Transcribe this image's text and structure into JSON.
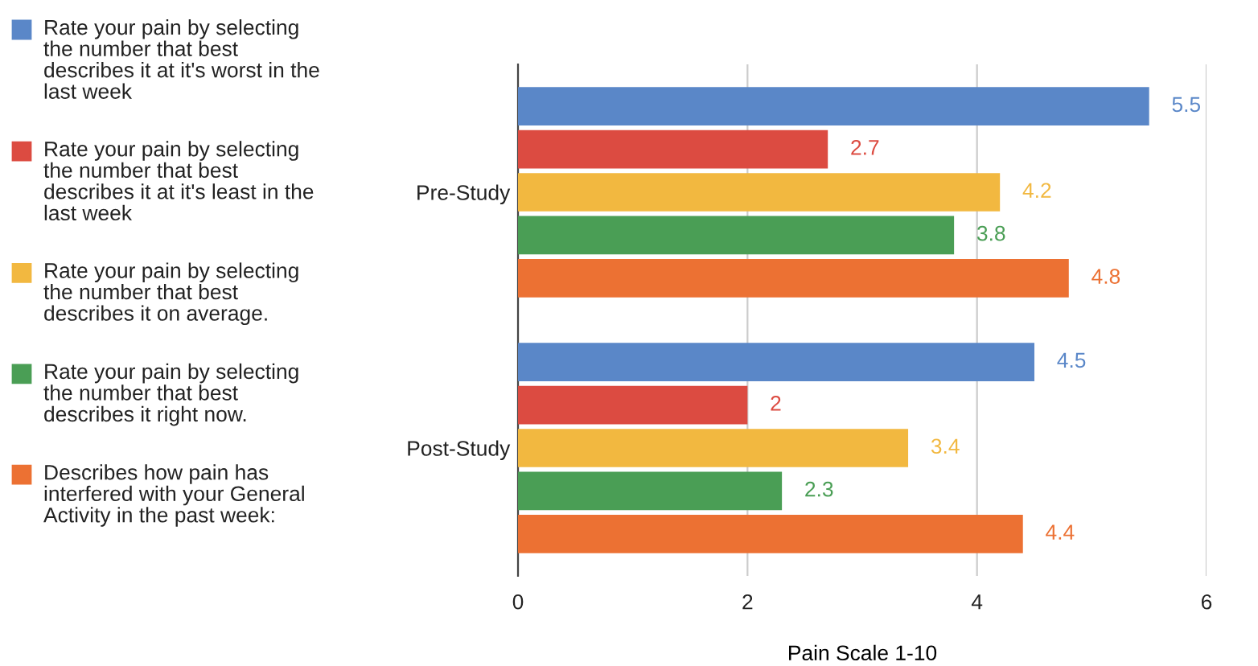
{
  "chart_data": {
    "type": "bar",
    "orientation": "horizontal",
    "categories": [
      "Pre-Study",
      "Post-Study"
    ],
    "series": [
      {
        "name": "Rate your pain by selecting the number that best describes it at it's worst in the last week",
        "color": "#5a87c8",
        "values": [
          5.5,
          4.5
        ]
      },
      {
        "name": "Rate your pain by selecting the number that best describes it at it's least in the last week",
        "color": "#dc4b41",
        "values": [
          2.7,
          2
        ]
      },
      {
        "name": "Rate your pain by selecting the number that best describes it on average.",
        "color": "#f2b840",
        "values": [
          4.2,
          3.4
        ]
      },
      {
        "name": "Rate your pain by selecting the number that best describes it right now.",
        "color": "#4a9e55",
        "values": [
          3.8,
          2.3
        ]
      },
      {
        "name": "Describes how pain has interfered with your General Activity in the past week:",
        "color": "#ec7133",
        "values": [
          4.8,
          4.4
        ]
      }
    ],
    "xlabel": "Pain Scale 1-10",
    "xlim": [
      0,
      6
    ],
    "xticks": [
      0,
      2,
      4,
      6
    ],
    "grid": "x",
    "legend": "left",
    "data_labels": true
  }
}
